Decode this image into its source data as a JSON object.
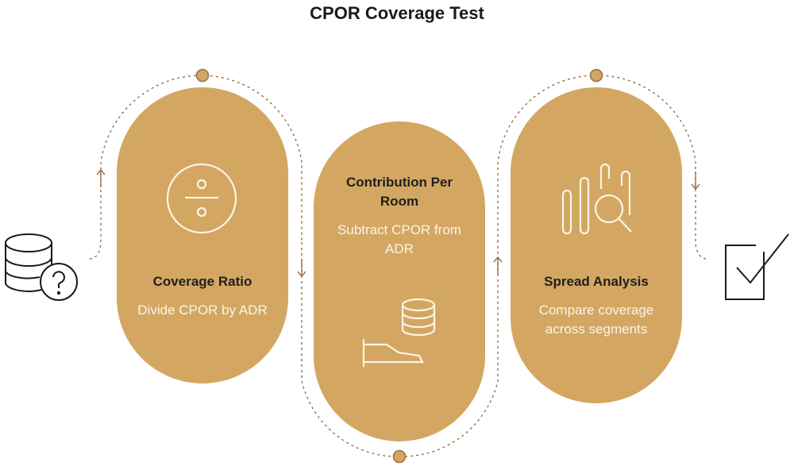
{
  "title": "CPOR Coverage Test",
  "colors": {
    "pill": "#d3a762",
    "pill_dark": "#c69a55",
    "dots": "#9a7044",
    "icon_light": "#fbf4e8",
    "icon_dark": "#1a1a1a"
  },
  "input_icon": "database-question-icon",
  "output_icon": "checkbox-check-icon",
  "steps": [
    {
      "title": "Coverage Ratio",
      "description": "Divide CPOR by ADR",
      "icon": "division-icon"
    },
    {
      "title": "Contribution Per Room",
      "description": "Subtract CPOR from ADR",
      "icon": "bed-database-icon"
    },
    {
      "title": "Spread Analysis",
      "description": "Compare coverage across segments",
      "icon": "chart-magnifier-icon"
    }
  ]
}
